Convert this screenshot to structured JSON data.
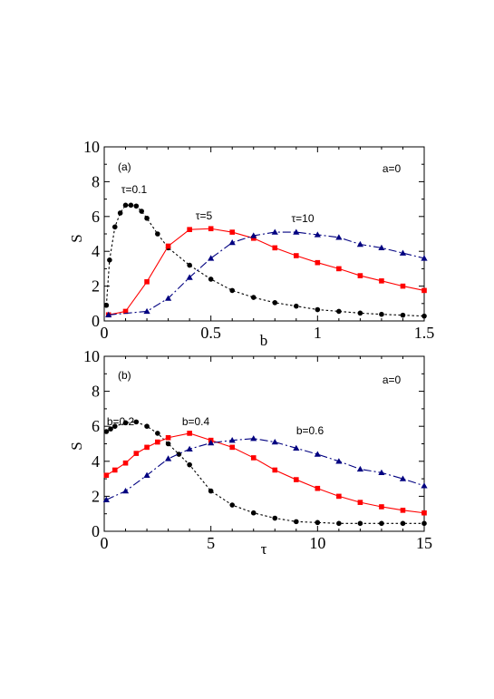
{
  "chart_data": [
    {
      "type": "line",
      "panel_label": "(a)",
      "annotation": "a=0",
      "xlabel": "b",
      "ylabel": "S",
      "xlim": [
        0,
        1.5
      ],
      "ylim": [
        0,
        10
      ],
      "x_ticks": [
        "0",
        "0.5",
        "1",
        "1.5"
      ],
      "y_ticks": [
        "0",
        "2",
        "4",
        "6",
        "8",
        "10"
      ],
      "grid": false,
      "series": [
        {
          "name": "τ=0.1",
          "color": "#000000",
          "marker": "circle",
          "dash": "dotted",
          "x": [
            0.01,
            0.025,
            0.05,
            0.075,
            0.1,
            0.125,
            0.15,
            0.175,
            0.2,
            0.25,
            0.3,
            0.4,
            0.5,
            0.6,
            0.7,
            0.8,
            0.9,
            1.0,
            1.1,
            1.2,
            1.3,
            1.4,
            1.5
          ],
          "y": [
            0.9,
            3.5,
            5.4,
            6.2,
            6.65,
            6.65,
            6.6,
            6.3,
            5.9,
            5.0,
            4.2,
            3.2,
            2.4,
            1.75,
            1.35,
            1.05,
            0.85,
            0.65,
            0.55,
            0.45,
            0.38,
            0.33,
            0.28
          ]
        },
        {
          "name": "τ=5",
          "color": "#ff0000",
          "marker": "square",
          "dash": "solid",
          "x": [
            0.02,
            0.1,
            0.2,
            0.3,
            0.4,
            0.5,
            0.6,
            0.7,
            0.8,
            0.9,
            1.0,
            1.1,
            1.2,
            1.3,
            1.4,
            1.5
          ],
          "y": [
            0.35,
            0.55,
            2.25,
            4.3,
            5.25,
            5.3,
            5.1,
            4.75,
            4.2,
            3.75,
            3.35,
            3.0,
            2.6,
            2.3,
            2.0,
            1.75
          ]
        },
        {
          "name": "τ=10",
          "color": "#000080",
          "marker": "triangle",
          "dash": "dashdot",
          "x": [
            0.02,
            0.2,
            0.3,
            0.4,
            0.5,
            0.6,
            0.7,
            0.8,
            0.9,
            1.0,
            1.1,
            1.2,
            1.3,
            1.4,
            1.5
          ],
          "y": [
            0.35,
            0.55,
            1.3,
            2.5,
            3.6,
            4.5,
            4.9,
            5.1,
            5.1,
            4.95,
            4.8,
            4.4,
            4.2,
            3.9,
            3.6
          ]
        }
      ]
    },
    {
      "type": "line",
      "panel_label": "(b)",
      "annotation": "a=0",
      "xlabel": "τ",
      "ylabel": "S",
      "xlim": [
        0,
        15
      ],
      "ylim": [
        0,
        10
      ],
      "x_ticks": [
        "0",
        "5",
        "10",
        "15"
      ],
      "y_ticks": [
        "0",
        "2",
        "4",
        "6",
        "8",
        "10"
      ],
      "grid": false,
      "series": [
        {
          "name": "b=0.2",
          "color": "#000000",
          "marker": "circle",
          "dash": "dotted",
          "x": [
            0.1,
            0.3,
            0.5,
            1.0,
            1.5,
            2.0,
            2.5,
            3.0,
            3.5,
            4.0,
            5.0,
            6.0,
            7.0,
            8.0,
            9.0,
            10.0,
            11.0,
            12.0,
            13.0,
            14.0,
            15.0
          ],
          "y": [
            5.7,
            5.85,
            6.0,
            6.2,
            6.25,
            6.0,
            5.6,
            5.0,
            4.4,
            3.8,
            2.3,
            1.5,
            1.05,
            0.75,
            0.55,
            0.5,
            0.45,
            0.45,
            0.45,
            0.45,
            0.45
          ]
        },
        {
          "name": "b=0.4",
          "color": "#ff0000",
          "marker": "square",
          "dash": "solid",
          "x": [
            0.1,
            0.5,
            1.0,
            1.5,
            2.0,
            2.5,
            3.0,
            4.0,
            5.0,
            6.0,
            7.0,
            8.0,
            9.0,
            10.0,
            11.0,
            12.0,
            13.0,
            14.0,
            15.0
          ],
          "y": [
            3.2,
            3.5,
            3.9,
            4.45,
            4.8,
            5.1,
            5.35,
            5.6,
            5.2,
            4.8,
            4.2,
            3.5,
            2.95,
            2.45,
            2.0,
            1.65,
            1.4,
            1.2,
            1.05
          ]
        },
        {
          "name": "b=0.6",
          "color": "#000080",
          "marker": "triangle",
          "dash": "dashdot",
          "x": [
            0.1,
            1.0,
            2.0,
            3.0,
            4.0,
            5.0,
            6.0,
            7.0,
            8.0,
            9.0,
            10.0,
            11.0,
            12.0,
            13.0,
            14.0,
            15.0
          ],
          "y": [
            1.8,
            2.3,
            3.2,
            4.15,
            4.7,
            5.05,
            5.2,
            5.3,
            5.1,
            4.75,
            4.4,
            4.0,
            3.55,
            3.35,
            3.0,
            2.6
          ]
        }
      ]
    }
  ],
  "labels": {
    "a_curve1": "τ=0.1",
    "a_curve2": "τ=5",
    "a_curve3": "τ=10",
    "b_curve1": "b=0.2",
    "b_curve2": "b=0.4",
    "b_curve3": "b=0.6"
  }
}
